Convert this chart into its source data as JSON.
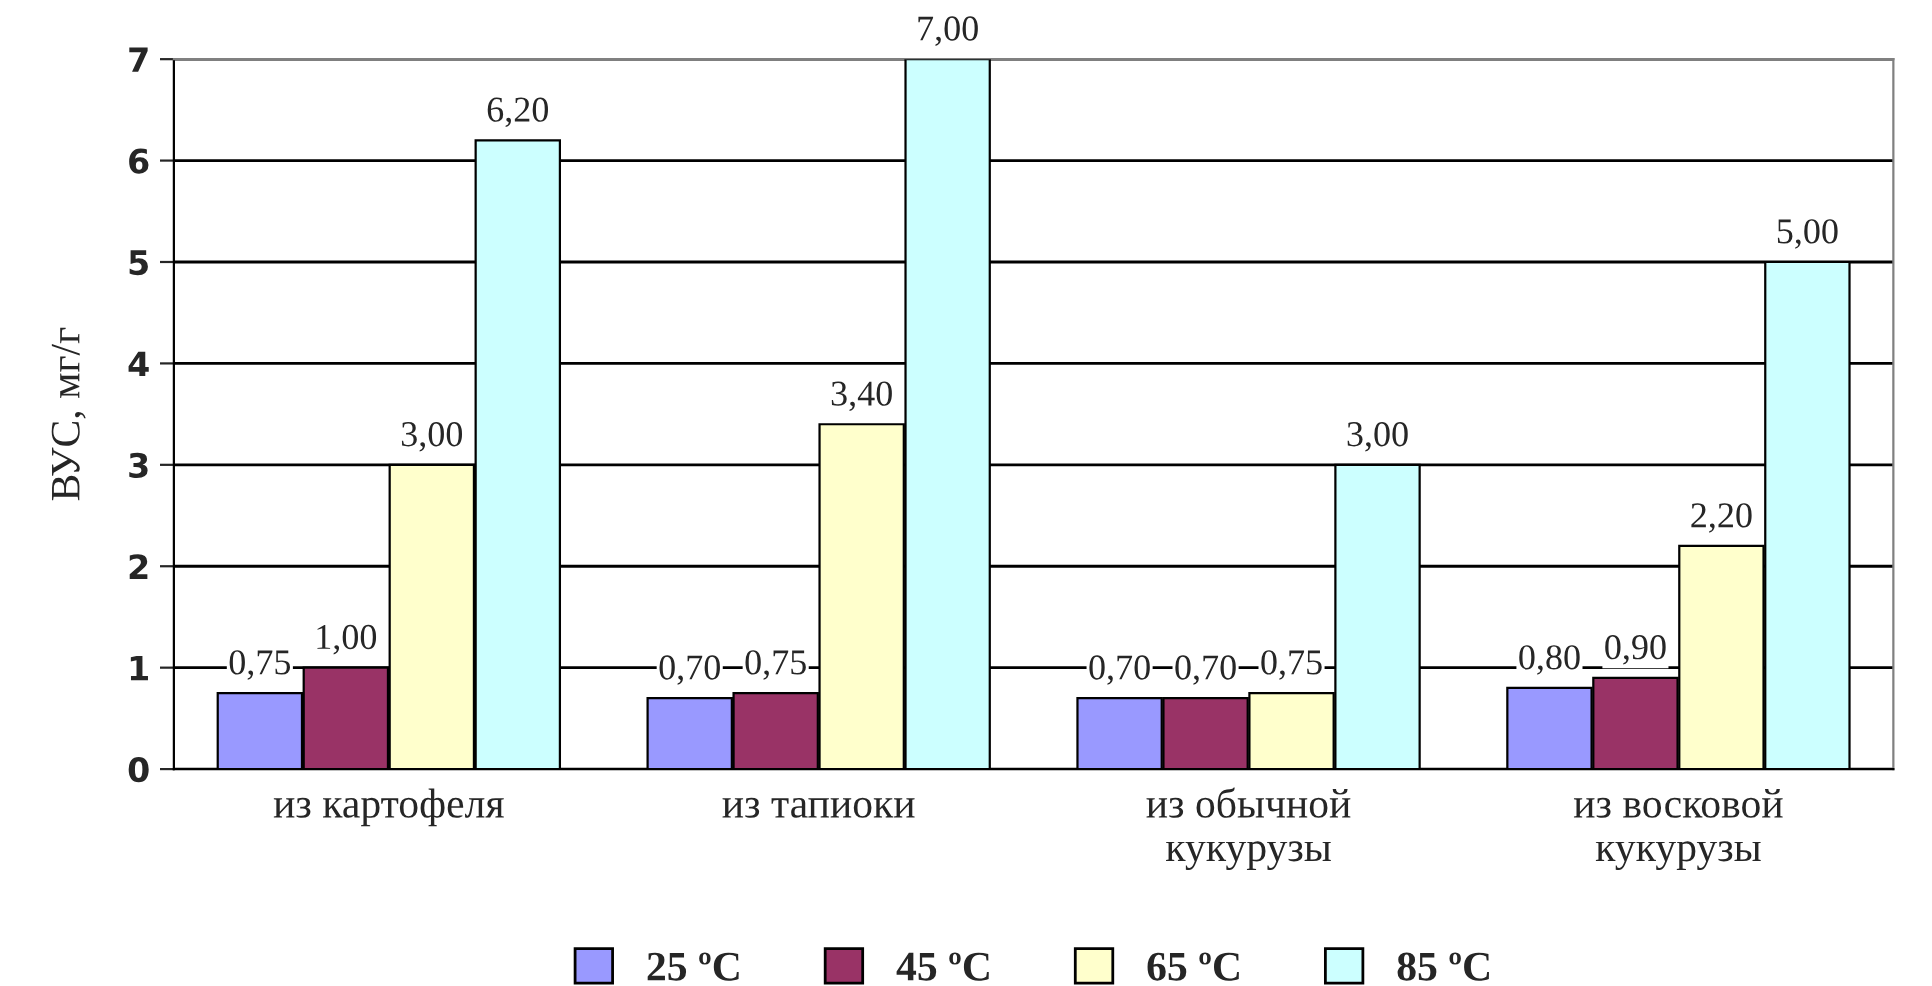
{
  "chart_data": {
    "type": "bar",
    "ylabel": "ВУС, мг/г",
    "categories": [
      "из картофеля",
      "из тапиоки",
      "из обычной\nкукурузы",
      "из восковой\nкукурузы"
    ],
    "series": [
      {
        "name": "25 ºC",
        "color": "#9999ff",
        "values": [
          0.75,
          0.7,
          0.7,
          0.8
        ],
        "value_labels": [
          "0,75",
          "0,70",
          "0,70",
          "0,80"
        ]
      },
      {
        "name": "45 ºC",
        "color": "#993366",
        "values": [
          1.0,
          0.75,
          0.7,
          0.9
        ],
        "value_labels": [
          "1,00",
          "0,75",
          "0,70",
          "0,90"
        ]
      },
      {
        "name": "65 ºC",
        "color": "#ffffcc",
        "values": [
          3.0,
          3.4,
          0.75,
          2.2
        ],
        "value_labels": [
          "3,00",
          "3,40",
          "0,75",
          "2,20"
        ]
      },
      {
        "name": "85 ºC",
        "color": "#ccffff",
        "values": [
          6.2,
          7.0,
          3.0,
          5.0
        ],
        "value_labels": [
          "6,20",
          "7,00",
          "3,00",
          "5,00"
        ]
      }
    ],
    "ylim": [
      0,
      7
    ],
    "yticks": [
      0,
      1,
      2,
      3,
      4,
      5,
      6,
      7
    ],
    "grid": "y",
    "legend": "bottom"
  }
}
